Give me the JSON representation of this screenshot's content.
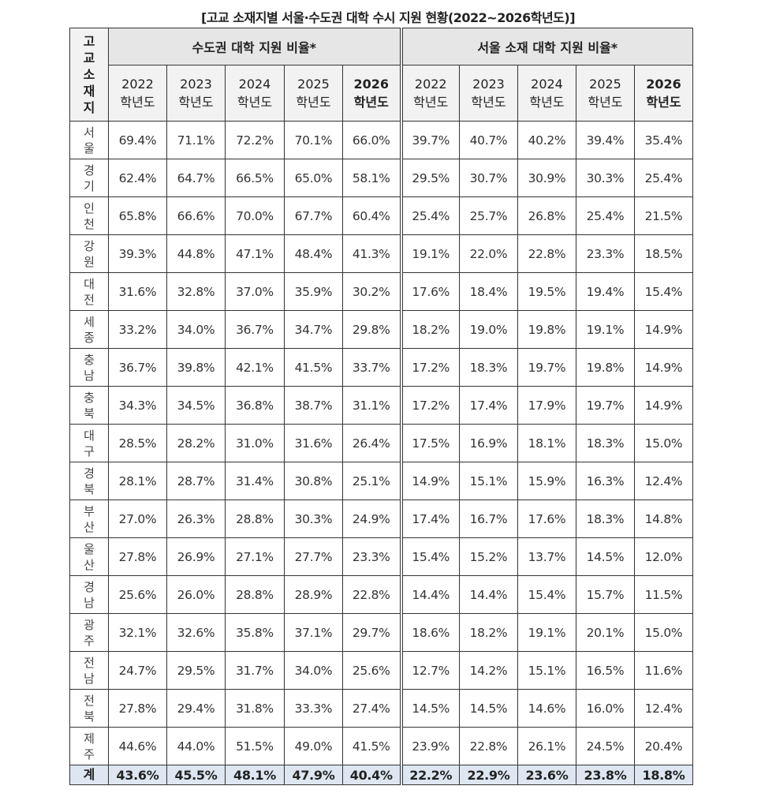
{
  "title": "[고교 소재지별 서울·수도권 대학 수시 지원 현황(2022~2026학년도)]",
  "header": {
    "region_label": "고교소재지",
    "groups": [
      "수도권 대학 지원 비율*",
      "서울 소재 대학 지원 비율*"
    ],
    "years": [
      {
        "year": "2022",
        "suffix": "학년도"
      },
      {
        "year": "2023",
        "suffix": "학년도"
      },
      {
        "year": "2024",
        "suffix": "학년도"
      },
      {
        "year": "2025",
        "suffix": "학년도"
      },
      {
        "year": "2026",
        "suffix": "학년도"
      }
    ]
  },
  "rows": [
    {
      "region": "서울",
      "capital": [
        "69.4%",
        "71.1%",
        "72.2%",
        "70.1%",
        "66.0%"
      ],
      "seoul": [
        "39.7%",
        "40.7%",
        "40.2%",
        "39.4%",
        "35.4%"
      ]
    },
    {
      "region": "경기",
      "capital": [
        "62.4%",
        "64.7%",
        "66.5%",
        "65.0%",
        "58.1%"
      ],
      "seoul": [
        "29.5%",
        "30.7%",
        "30.9%",
        "30.3%",
        "25.4%"
      ]
    },
    {
      "region": "인천",
      "capital": [
        "65.8%",
        "66.6%",
        "70.0%",
        "67.7%",
        "60.4%"
      ],
      "seoul": [
        "25.4%",
        "25.7%",
        "26.8%",
        "25.4%",
        "21.5%"
      ]
    },
    {
      "region": "강원",
      "capital": [
        "39.3%",
        "44.8%",
        "47.1%",
        "48.4%",
        "41.3%"
      ],
      "seoul": [
        "19.1%",
        "22.0%",
        "22.8%",
        "23.3%",
        "18.5%"
      ]
    },
    {
      "region": "대전",
      "capital": [
        "31.6%",
        "32.8%",
        "37.0%",
        "35.9%",
        "30.2%"
      ],
      "seoul": [
        "17.6%",
        "18.4%",
        "19.5%",
        "19.4%",
        "15.4%"
      ]
    },
    {
      "region": "세종",
      "capital": [
        "33.2%",
        "34.0%",
        "36.7%",
        "34.7%",
        "29.8%"
      ],
      "seoul": [
        "18.2%",
        "19.0%",
        "19.8%",
        "19.1%",
        "14.9%"
      ]
    },
    {
      "region": "충남",
      "capital": [
        "36.7%",
        "39.8%",
        "42.1%",
        "41.5%",
        "33.7%"
      ],
      "seoul": [
        "17.2%",
        "18.3%",
        "19.7%",
        "19.8%",
        "14.9%"
      ]
    },
    {
      "region": "충북",
      "capital": [
        "34.3%",
        "34.5%",
        "36.8%",
        "38.7%",
        "31.1%"
      ],
      "seoul": [
        "17.2%",
        "17.4%",
        "17.9%",
        "19.7%",
        "14.9%"
      ]
    },
    {
      "region": "대구",
      "capital": [
        "28.5%",
        "28.2%",
        "31.0%",
        "31.6%",
        "26.4%"
      ],
      "seoul": [
        "17.5%",
        "16.9%",
        "18.1%",
        "18.3%",
        "15.0%"
      ]
    },
    {
      "region": "경북",
      "capital": [
        "28.1%",
        "28.7%",
        "31.4%",
        "30.8%",
        "25.1%"
      ],
      "seoul": [
        "14.9%",
        "15.1%",
        "15.9%",
        "16.3%",
        "12.4%"
      ]
    },
    {
      "region": "부산",
      "capital": [
        "27.0%",
        "26.3%",
        "28.8%",
        "30.3%",
        "24.9%"
      ],
      "seoul": [
        "17.4%",
        "16.7%",
        "17.6%",
        "18.3%",
        "14.8%"
      ]
    },
    {
      "region": "울산",
      "capital": [
        "27.8%",
        "26.9%",
        "27.1%",
        "27.7%",
        "23.3%"
      ],
      "seoul": [
        "15.4%",
        "15.2%",
        "13.7%",
        "14.5%",
        "12.0%"
      ]
    },
    {
      "region": "경남",
      "capital": [
        "25.6%",
        "26.0%",
        "28.8%",
        "28.9%",
        "22.8%"
      ],
      "seoul": [
        "14.4%",
        "14.4%",
        "15.4%",
        "15.7%",
        "11.5%"
      ]
    },
    {
      "region": "광주",
      "capital": [
        "32.1%",
        "32.6%",
        "35.8%",
        "37.1%",
        "29.7%"
      ],
      "seoul": [
        "18.6%",
        "18.2%",
        "19.1%",
        "20.1%",
        "15.0%"
      ]
    },
    {
      "region": "전남",
      "capital": [
        "24.7%",
        "29.5%",
        "31.7%",
        "34.0%",
        "25.6%"
      ],
      "seoul": [
        "12.7%",
        "14.2%",
        "15.1%",
        "16.5%",
        "11.6%"
      ]
    },
    {
      "region": "전북",
      "capital": [
        "27.8%",
        "29.4%",
        "31.8%",
        "33.3%",
        "27.4%"
      ],
      "seoul": [
        "14.5%",
        "14.5%",
        "14.6%",
        "16.0%",
        "12.4%"
      ]
    },
    {
      "region": "제주",
      "capital": [
        "44.6%",
        "44.0%",
        "51.5%",
        "49.0%",
        "41.5%"
      ],
      "seoul": [
        "23.9%",
        "22.8%",
        "26.1%",
        "24.5%",
        "20.4%"
      ]
    }
  ],
  "total": {
    "region": "계",
    "capital": [
      "43.6%",
      "45.5%",
      "48.1%",
      "47.9%",
      "40.4%"
    ],
    "seoul": [
      "22.2%",
      "22.9%",
      "23.6%",
      "23.8%",
      "18.8%"
    ]
  },
  "colors": {
    "header_bg": "#e6e6e6",
    "total_bg": "#dde6f1",
    "border": "#333333"
  }
}
